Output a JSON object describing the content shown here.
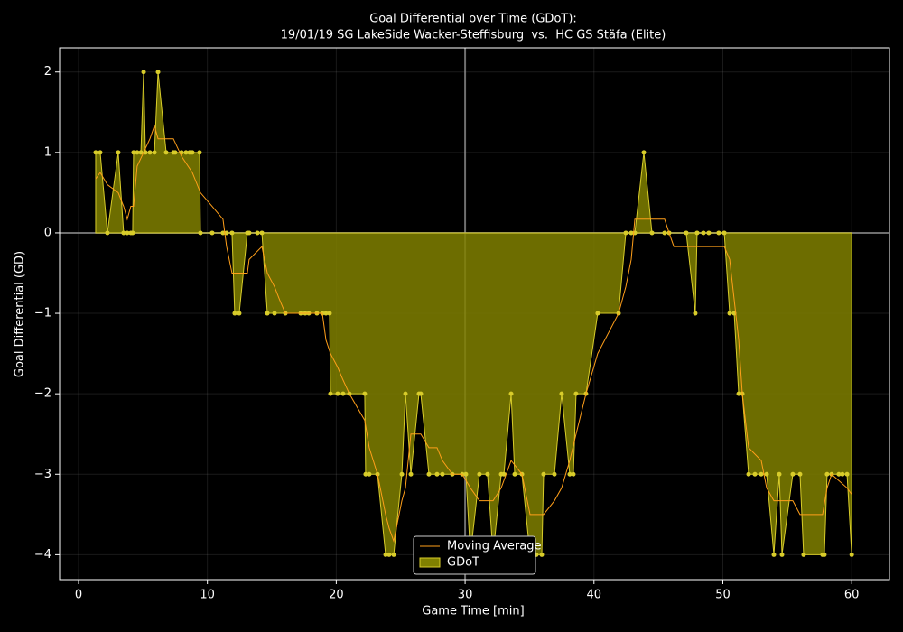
{
  "chart_data": {
    "type": "line",
    "title": "Goal Differential over Time (GDoT):",
    "subtitle": "19/01/19 SG LakeSide Wacker-Steffisburg  vs.  HC GS Stäfa (Elite)",
    "xlabel": "Game Time [min]",
    "ylabel": "Goal Differential (GD)",
    "xlim": [
      -1.47,
      62.93
    ],
    "ylim": [
      -4.31,
      2.3
    ],
    "xticks": [
      0,
      10,
      20,
      30,
      40,
      50,
      60
    ],
    "yticks": [
      {
        "value": -4,
        "label": "−4"
      },
      {
        "value": -3,
        "label": "−3"
      },
      {
        "value": -2,
        "label": "−2"
      },
      {
        "value": -1,
        "label": "−1"
      },
      0,
      1,
      2
    ],
    "grid": true,
    "axvline": 30,
    "axhline": 0,
    "legend": "lower center",
    "series": [
      {
        "name": "Moving Average",
        "style": "line",
        "color": "#ff9f1a",
        "x": [
          1.33,
          1.68,
          2.24,
          3.08,
          3.5,
          3.78,
          4.06,
          4.27,
          4.55,
          5.05,
          5.54,
          5.89,
          6.17,
          7.36,
          8.0,
          8.83,
          9.46,
          10.37,
          11.21,
          11.49,
          11.91,
          12.47,
          13.1,
          13.24,
          14.23,
          14.65,
          15.21,
          15.6,
          16.05,
          18.92,
          19.2,
          19.55,
          20.11,
          20.53,
          21.02,
          22.21,
          22.56,
          23.2,
          23.83,
          24.1,
          24.46,
          25.09,
          25.37,
          25.79,
          26.56,
          27.19,
          27.82,
          28.24,
          29.01,
          29.78,
          30.41,
          31.11,
          32.17,
          32.8,
          33.57,
          34.41,
          35.04,
          36.09,
          36.93,
          37.49,
          38.12,
          38.61,
          39.38,
          40.29,
          41.91,
          42.47,
          42.89,
          43.17,
          45.48,
          45.83,
          46.2,
          50.11,
          50.53,
          50.88,
          51.23,
          51.51,
          52.0,
          52.98,
          53.4,
          53.96,
          55.43,
          55.99,
          57.74,
          58.09,
          58.44,
          59.64,
          60.0
        ],
        "values": [
          0.67,
          0.75,
          0.6,
          0.5,
          0.33,
          0.17,
          0.33,
          0.33,
          0.83,
          1.0,
          1.17,
          1.33,
          1.17,
          1.17,
          0.95,
          0.75,
          0.5,
          0.33,
          0.17,
          -0.17,
          -0.5,
          -0.5,
          -0.5,
          -0.33,
          -0.17,
          -0.5,
          -0.67,
          -0.83,
          -1.0,
          -1.0,
          -1.33,
          -1.5,
          -1.67,
          -1.83,
          -2.0,
          -2.33,
          -2.67,
          -3.0,
          -3.5,
          -3.67,
          -3.83,
          -3.33,
          -3.17,
          -2.5,
          -2.5,
          -2.67,
          -2.67,
          -2.83,
          -3.0,
          -3.0,
          -3.17,
          -3.33,
          -3.33,
          -3.17,
          -2.83,
          -3.0,
          -3.5,
          -3.5,
          -3.33,
          -3.17,
          -2.83,
          -2.5,
          -2.0,
          -1.5,
          -1.0,
          -0.67,
          -0.33,
          0.17,
          0.17,
          0.0,
          -0.17,
          -0.17,
          -0.33,
          -0.83,
          -1.33,
          -2.0,
          -2.67,
          -2.83,
          -3.17,
          -3.33,
          -3.33,
          -3.5,
          -3.5,
          -3.17,
          -3.0,
          -3.17,
          -3.25
        ]
      },
      {
        "name": "GDoT",
        "style": "area",
        "color": "#808000",
        "point_color": "#d8cc2a",
        "x": [
          1.33,
          1.68,
          2.24,
          3.08,
          3.5,
          3.78,
          4.06,
          4.2,
          4.27,
          4.55,
          4.84,
          5.05,
          5.19,
          5.54,
          5.89,
          6.17,
          6.8,
          7.36,
          7.5,
          7.99,
          8.34,
          8.62,
          8.83,
          9.39,
          9.46,
          10.37,
          11.21,
          11.49,
          11.91,
          12.12,
          12.47,
          13.1,
          13.24,
          13.88,
          14.23,
          14.65,
          15.21,
          16.05,
          17.24,
          17.59,
          17.87,
          18.5,
          18.92,
          19.2,
          19.48,
          19.55,
          20.11,
          20.53,
          21.02,
          22.21,
          22.28,
          22.56,
          23.2,
          23.83,
          24.1,
          24.46,
          25.09,
          25.37,
          25.79,
          26.42,
          26.56,
          27.19,
          27.82,
          28.24,
          29.01,
          29.78,
          30.06,
          30.41,
          31.11,
          31.74,
          32.17,
          32.8,
          33.01,
          33.57,
          33.85,
          34.41,
          35.04,
          35.53,
          35.95,
          36.09,
          36.93,
          37.49,
          38.12,
          38.4,
          38.61,
          39.38,
          40.29,
          41.91,
          42.47,
          42.89,
          43.17,
          43.87,
          44.5,
          45.48,
          45.83,
          47.16,
          47.86,
          48.0,
          48.49,
          48.91,
          49.68,
          50.11,
          50.53,
          50.88,
          51.23,
          51.51,
          52.0,
          52.49,
          52.98,
          53.4,
          53.96,
          54.38,
          54.59,
          55.43,
          55.99,
          56.27,
          57.74,
          57.88,
          58.09,
          58.44,
          59.0,
          59.28,
          59.64,
          60.0
        ],
        "values": [
          1,
          1,
          0,
          1,
          0,
          0,
          0,
          0,
          1,
          1,
          1,
          2,
          1,
          1,
          1,
          2,
          1,
          1,
          1,
          1,
          1,
          1,
          1,
          1,
          0,
          0,
          0,
          0,
          0,
          -1,
          -1,
          0,
          0,
          0,
          0,
          -1,
          -1,
          -1,
          -1,
          -1,
          -1,
          -1,
          -1,
          -1,
          -1,
          -2,
          -2,
          -2,
          -2,
          -2,
          -3,
          -3,
          -3,
          -4,
          -4,
          -4,
          -3,
          -2,
          -3,
          -2,
          -2,
          -3,
          -3,
          -3,
          -3,
          -3,
          -3,
          -4,
          -3,
          -3,
          -4,
          -3,
          -3,
          -2,
          -3,
          -3,
          -4,
          -4,
          -4,
          -3,
          -3,
          -2,
          -3,
          -3,
          -2,
          -2,
          -1,
          -1,
          0,
          0,
          0,
          1,
          0,
          0,
          0,
          0,
          -1,
          0,
          0,
          0,
          0,
          0,
          -1,
          -1,
          -2,
          -2,
          -3,
          -3,
          -3,
          -3,
          -4,
          -3,
          -4,
          -3,
          -3,
          -4,
          -4,
          -4,
          -3,
          -3,
          -3,
          -3,
          -3,
          -4
        ]
      }
    ]
  }
}
